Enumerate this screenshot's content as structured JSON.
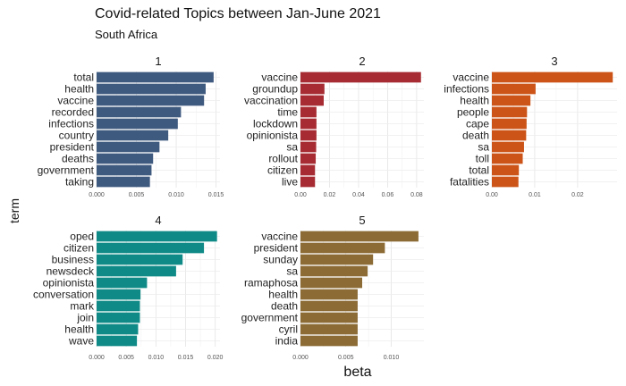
{
  "chart": {
    "title": "Covid-related Topics between Jan-June 2021",
    "subtitle": "South Africa",
    "xlabel": "beta",
    "ylabel": "term"
  },
  "chart_data": {
    "type": "bar",
    "orientation": "horizontal",
    "facets": [
      {
        "label": "1",
        "color": "#3f5a7f",
        "xlim": [
          0,
          0.0155
        ],
        "ticks": [
          0.0,
          0.005,
          0.01,
          0.015
        ],
        "tick_labels": [
          "0.000",
          "0.005",
          "0.010",
          "0.015"
        ],
        "terms": [
          "total",
          "health",
          "vaccine",
          "recorded",
          "infections",
          "country",
          "president",
          "deaths",
          "government",
          "taking"
        ],
        "values": [
          0.0147,
          0.0137,
          0.0135,
          0.0106,
          0.0102,
          0.009,
          0.0079,
          0.0071,
          0.0069,
          0.0067
        ]
      },
      {
        "label": "2",
        "color": "#a62b32",
        "xlim": [
          0,
          0.085
        ],
        "ticks": [
          0.0,
          0.02,
          0.04,
          0.06,
          0.08
        ],
        "tick_labels": [
          "0.00",
          "0.02",
          "0.04",
          "0.06",
          "0.08"
        ],
        "terms": [
          "vaccine",
          "groundup",
          "vaccination",
          "time",
          "lockdown",
          "opinionista",
          "sa",
          "rollout",
          "citizen",
          "live"
        ],
        "values": [
          0.083,
          0.0165,
          0.016,
          0.011,
          0.011,
          0.011,
          0.0108,
          0.0105,
          0.01,
          0.01
        ]
      },
      {
        "label": "3",
        "color": "#cc5418",
        "xlim": [
          0,
          0.0292
        ],
        "ticks": [
          0.0,
          0.01,
          0.02
        ],
        "tick_labels": [
          "0.00",
          "0.01",
          "0.02"
        ],
        "terms": [
          "vaccine",
          "infections",
          "health",
          "people",
          "cape",
          "death",
          "sa",
          "toll",
          "total",
          "fatalities"
        ],
        "values": [
          0.0282,
          0.0102,
          0.009,
          0.0082,
          0.0081,
          0.008,
          0.0075,
          0.0072,
          0.0063,
          0.0062
        ]
      },
      {
        "label": "4",
        "color": "#0f8a87",
        "xlim": [
          0,
          0.0208
        ],
        "ticks": [
          0.0,
          0.005,
          0.01,
          0.015,
          0.02
        ],
        "tick_labels": [
          "0.000",
          "0.005",
          "0.010",
          "0.015",
          "0.020"
        ],
        "terms": [
          "oped",
          "citizen",
          "business",
          "newsdeck",
          "opinionista",
          "conversation",
          "mark",
          "join",
          "health",
          "wave"
        ],
        "values": [
          0.0203,
          0.0181,
          0.0145,
          0.0134,
          0.0085,
          0.0074,
          0.0073,
          0.0073,
          0.007,
          0.0068
        ]
      },
      {
        "label": "5",
        "color": "#8c6b35",
        "xlim": [
          0,
          0.0136
        ],
        "ticks": [
          0.0,
          0.005,
          0.01
        ],
        "tick_labels": [
          "0.000",
          "0.005",
          "0.010"
        ],
        "terms": [
          "vaccine",
          "president",
          "sunday",
          "sa",
          "ramaphosa",
          "health",
          "death",
          "government",
          "cyril",
          "india"
        ],
        "values": [
          0.013,
          0.0093,
          0.008,
          0.0074,
          0.0068,
          0.0063,
          0.0063,
          0.0063,
          0.0063,
          0.0063
        ]
      }
    ],
    "grid": true
  }
}
